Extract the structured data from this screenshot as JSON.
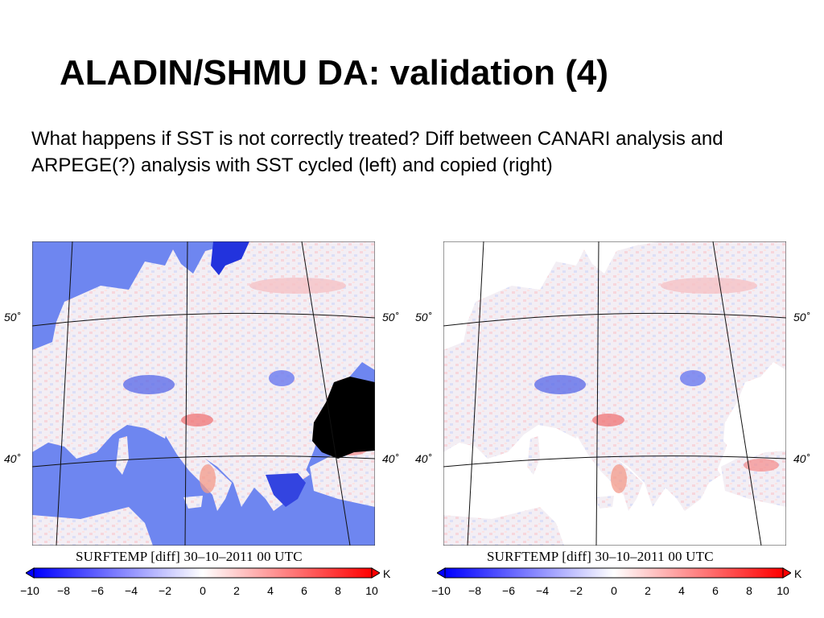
{
  "slide": {
    "title": "ALADIN/SHMU DA: validation (4)",
    "subtitle": "What happens if SST is not correctly treated? Diff between CANARI analysis and ARPEGE(?) analysis with SST cycled (left) and copied (right)"
  },
  "maps": [
    {
      "id": "left",
      "caption": "SURFTEMP [diff] 30–10–2011 00 UTC",
      "sea_tint": "#6e86f0",
      "black_sea_color": "#000000",
      "lat_labels": [
        "50˚",
        "50˚",
        "40˚",
        "40˚"
      ],
      "colorbar": {
        "unit": "K",
        "min": -10,
        "max": 10,
        "ticks": [
          "−10",
          "−8",
          "−6",
          "−4",
          "−2",
          "0",
          "2",
          "4",
          "6",
          "8",
          "10"
        ]
      }
    },
    {
      "id": "right",
      "caption": "SURFTEMP [diff] 30–10–2011 00 UTC",
      "sea_tint": "#ffffff",
      "black_sea_color": "#ffffff",
      "lat_labels": [
        "50˚",
        "50˚",
        "40˚",
        "40˚"
      ],
      "colorbar": {
        "unit": "K",
        "min": -10,
        "max": 10,
        "ticks": [
          "−10",
          "−8",
          "−6",
          "−4",
          "−2",
          "0",
          "2",
          "4",
          "6",
          "8",
          "10"
        ]
      }
    }
  ],
  "colors": {
    "cold": "#0000ff",
    "neutral": "#ffffff",
    "warm": "#ff0000"
  }
}
